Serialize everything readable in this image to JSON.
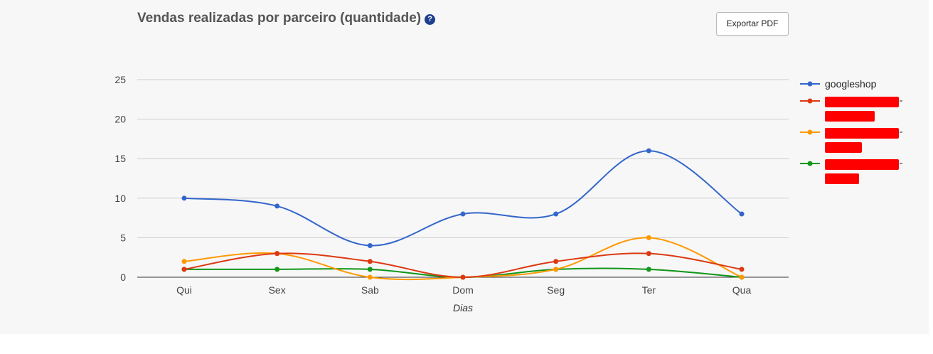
{
  "header": {
    "title": "Vendas realizadas por parceiro (quantidade)",
    "help_icon": "?",
    "export_label": "Exportar PDF"
  },
  "chart_data": {
    "type": "line",
    "xlabel": "Dias",
    "ylabel": "",
    "categories": [
      "Qui",
      "Sex",
      "Sab",
      "Dom",
      "Seg",
      "Ter",
      "Qua"
    ],
    "ylim": [
      0,
      25
    ],
    "yticks": [
      0,
      5,
      10,
      15,
      20,
      25
    ],
    "grid": true,
    "smooth": true,
    "legend_position": "right",
    "series": [
      {
        "name": "googleshop",
        "color": "#3366cc",
        "redacted": false,
        "values": [
          10,
          9,
          4,
          8,
          8,
          16,
          8
        ]
      },
      {
        "color": "#dc3912",
        "redacted": true,
        "values": [
          1,
          3,
          2,
          0,
          2,
          3,
          1
        ]
      },
      {
        "color": "#ff9900",
        "redacted": true,
        "values": [
          2,
          3,
          0,
          0,
          1,
          5,
          0
        ]
      },
      {
        "color": "#109618",
        "redacted": true,
        "values": [
          1,
          1,
          1,
          0,
          1,
          1,
          0
        ]
      }
    ]
  }
}
